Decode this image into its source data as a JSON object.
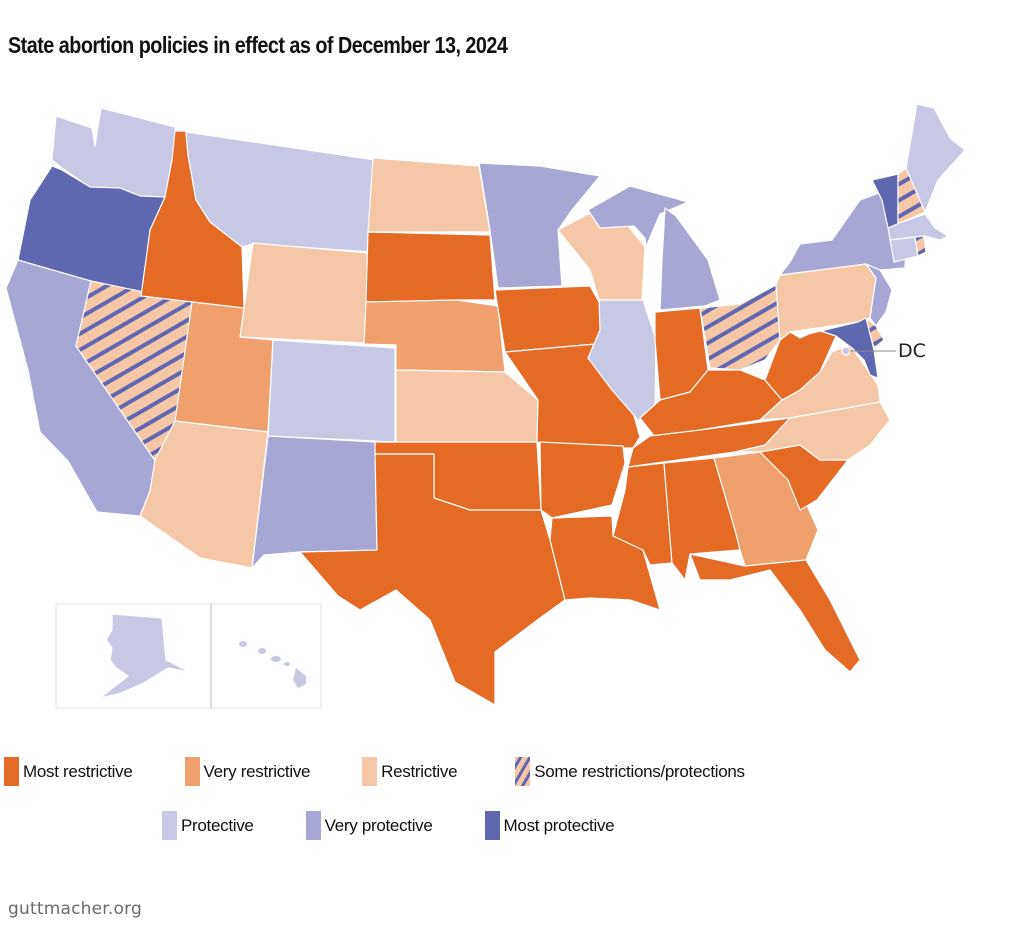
{
  "title": "State abortion policies in effect as of December 13, 2024",
  "source": "guttmacher.org",
  "colors": {
    "most_restrictive": "#e56a25",
    "very_restrictive": "#f0a06c",
    "restrictive": "#f5c7a6",
    "some": "#f5c7a6",
    "some_stripe": "#5e67b0",
    "protective": "#c7c8e4",
    "very_protective": "#a6a7d4",
    "most_protective": "#5e67b0"
  },
  "legend": {
    "row1": [
      {
        "key": "most_restrictive",
        "label": "Most restrictive"
      },
      {
        "key": "very_restrictive",
        "label": "Very restrictive"
      },
      {
        "key": "restrictive",
        "label": "Restrictive"
      },
      {
        "key": "some",
        "label": "Some restrictions/protections"
      }
    ],
    "row2": [
      {
        "key": "protective",
        "label": "Protective"
      },
      {
        "key": "very_protective",
        "label": "Very protective"
      },
      {
        "key": "most_protective",
        "label": "Most protective"
      }
    ]
  },
  "annotations": {
    "dc": "DC"
  },
  "states": {
    "WA": "protective",
    "OR": "most_protective",
    "CA": "very_protective",
    "NV": "some",
    "ID": "most_restrictive",
    "MT": "protective",
    "WY": "restrictive",
    "UT": "very_restrictive",
    "AZ": "restrictive",
    "CO": "protective",
    "NM": "very_protective",
    "ND": "restrictive",
    "SD": "most_restrictive",
    "NE": "very_restrictive",
    "KS": "restrictive",
    "OK": "most_restrictive",
    "TX": "most_restrictive",
    "MN": "very_protective",
    "IA": "most_restrictive",
    "MO": "most_restrictive",
    "AR": "most_restrictive",
    "LA": "most_restrictive",
    "WI": "restrictive",
    "IL": "protective",
    "MI": "very_protective",
    "IN": "most_restrictive",
    "OH": "some",
    "KY": "most_restrictive",
    "TN": "most_restrictive",
    "MS": "most_restrictive",
    "AL": "most_restrictive",
    "GA": "very_restrictive",
    "FL": "most_restrictive",
    "SC": "most_restrictive",
    "NC": "restrictive",
    "VA": "restrictive",
    "WV": "most_restrictive",
    "PA": "restrictive",
    "NY": "very_protective",
    "NJ": "very_protective",
    "DE": "some",
    "MD": "most_protective",
    "DC": "protective",
    "CT": "protective",
    "RI": "some",
    "MA": "protective",
    "VT": "most_protective",
    "NH": "some",
    "ME": "protective",
    "AK": "protective",
    "HI": "protective"
  }
}
